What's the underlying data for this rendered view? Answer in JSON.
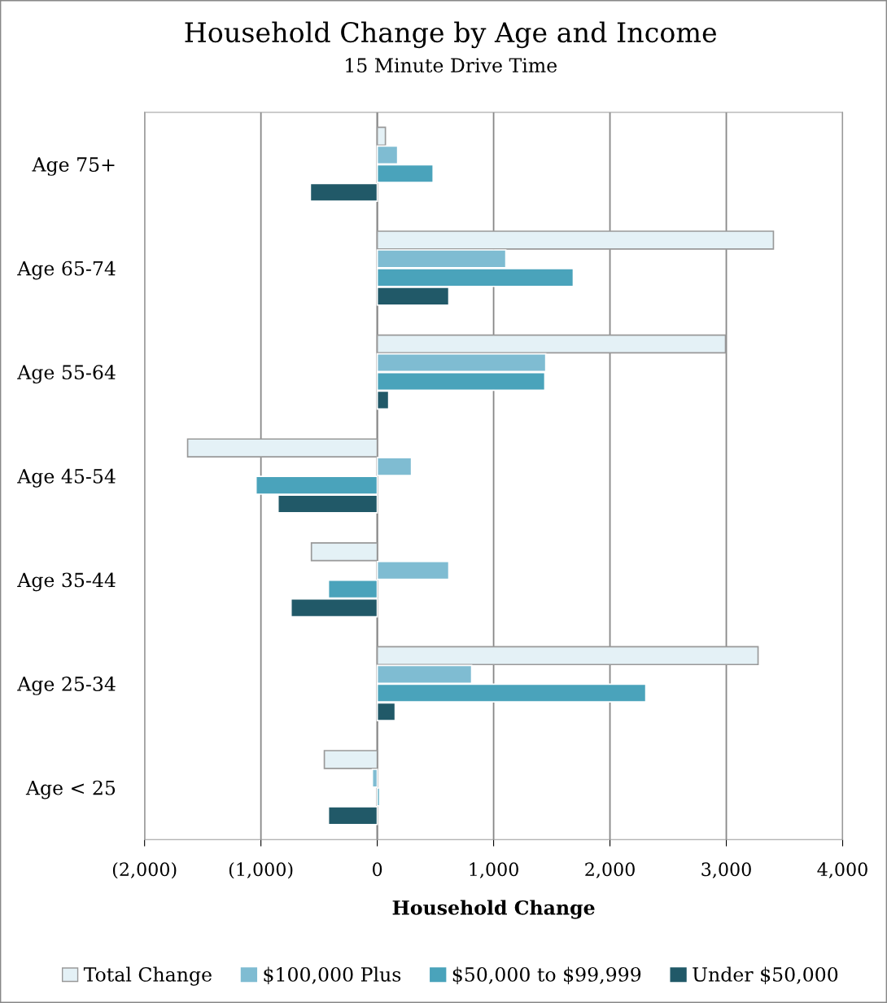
{
  "chart_data": {
    "type": "bar",
    "orientation": "horizontal",
    "title": "Household Change by Age and Income",
    "subtitle": "15 Minute Drive Time",
    "xlabel": "Household Change",
    "categories": [
      "Age 75+",
      "Age 65-74",
      "Age 55-64",
      "Age 45-54",
      "Age 35-44",
      "Age 25-34",
      "Age < 25"
    ],
    "series": [
      {
        "name": "Total Change",
        "color": "#e4f1f6",
        "values": [
          70,
          3405,
          2993,
          -1630,
          -566,
          3273,
          -455
        ]
      },
      {
        "name": "$100,000 Plus",
        "color": "#7fbcd2",
        "values": [
          175,
          1105,
          1448,
          294,
          615,
          811,
          -42
        ]
      },
      {
        "name": "$50,000 to $99,999",
        "color": "#4aa3bb",
        "values": [
          480,
          1685,
          1440,
          -1042,
          -420,
          2308,
          20
        ]
      },
      {
        "name": "Under $50,000",
        "color": "#215968",
        "values": [
          -575,
          615,
          98,
          -853,
          -741,
          154,
          -420
        ]
      }
    ],
    "xlim": [
      -2000,
      4000
    ],
    "xticks": [
      {
        "value": -2000,
        "label": "(2,000)"
      },
      {
        "value": -1000,
        "label": "(1,000)"
      },
      0,
      {
        "value": 1000,
        "label": "1,000"
      },
      {
        "value": 2000,
        "label": "2,000"
      },
      {
        "value": 3000,
        "label": "3,000"
      },
      {
        "value": 4000,
        "label": "4,000"
      }
    ],
    "grid": "x",
    "legend": "bottom"
  }
}
